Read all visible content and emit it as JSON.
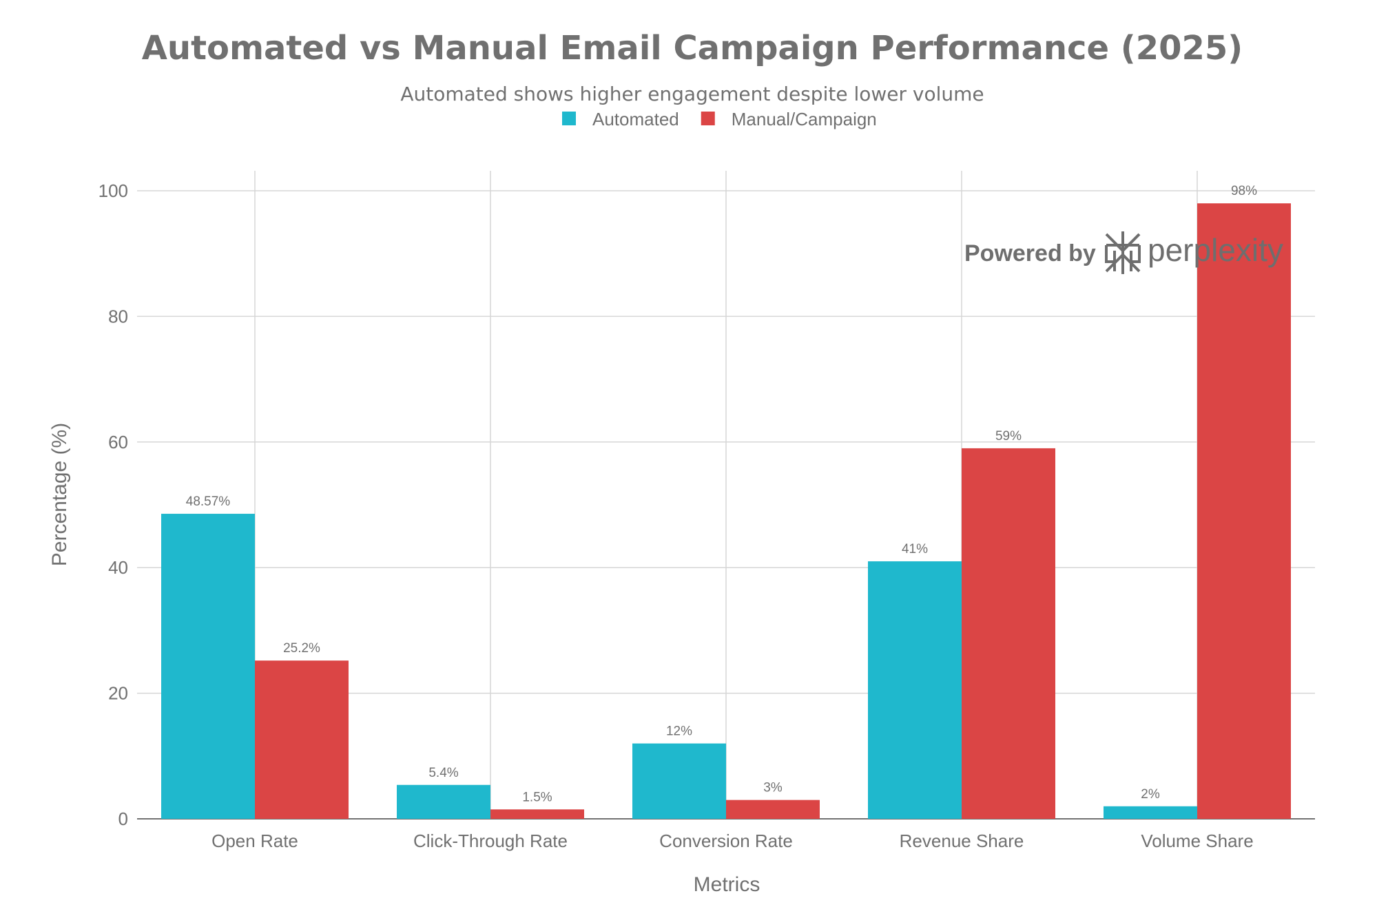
{
  "chart_data": {
    "type": "bar",
    "title": "Automated vs Manual Email Campaign Performance (2025)",
    "subtitle": "Automated shows higher engagement despite lower volume",
    "xlabel": "Metrics",
    "ylabel": "Percentage (%)",
    "ylim": [
      0,
      100
    ],
    "yticks": [
      0,
      20,
      40,
      60,
      80,
      100
    ],
    "grid": true,
    "legend_placement": "top-center",
    "categories": [
      "Open Rate",
      "Click-Through Rate",
      "Conversion Rate",
      "Revenue Share",
      "Volume Share"
    ],
    "series": [
      {
        "name": "Automated",
        "color": "#1FB8CD",
        "values": [
          48.57,
          5.4,
          12,
          41,
          2
        ],
        "labels": [
          "48.57%",
          "5.4%",
          "12%",
          "41%",
          "2%"
        ]
      },
      {
        "name": "Manual/Campaign",
        "color": "#DB4545",
        "values": [
          25.2,
          1.5,
          3,
          59,
          98
        ],
        "labels": [
          "25.2%",
          "1.5%",
          "3%",
          "59%",
          "98%"
        ]
      }
    ]
  },
  "watermark": {
    "text": "Powered by",
    "brand": "perplexity",
    "icon": "perplexity-logo-icon"
  }
}
